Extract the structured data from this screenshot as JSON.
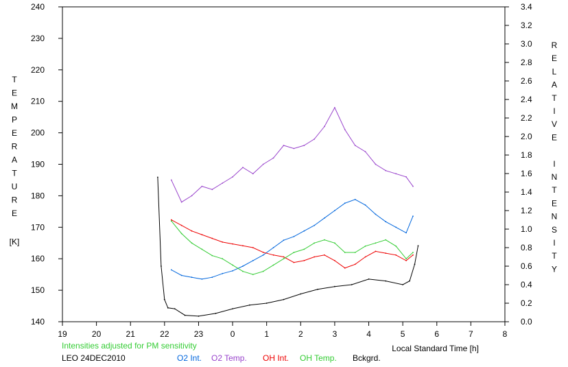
{
  "chart_data": {
    "type": "line",
    "xlabel": "Local Standard Time [h]",
    "ylabel_left": "TEMPERATURE",
    "ylabel_left_unit": "[K]",
    "ylabel_right": "RELATIVE INTENSITY",
    "x_ticks": [
      "19",
      "20",
      "21",
      "22",
      "23",
      "0",
      "1",
      "2",
      "3",
      "4",
      "5",
      "6",
      "7",
      "8"
    ],
    "xlim": [
      19,
      32
    ],
    "ylim_left": [
      140,
      240
    ],
    "ylim_right": [
      0,
      3.4
    ],
    "y_left_ticks": [
      140,
      150,
      160,
      170,
      180,
      190,
      200,
      210,
      220,
      230,
      240
    ],
    "y_right_ticks": [
      "0.0",
      "0.2",
      "0.4",
      "0.6",
      "0.8",
      "1.0",
      "1.2",
      "1.4",
      "1.6",
      "1.8",
      "2.0",
      "2.2",
      "2.4",
      "2.6",
      "2.8",
      "3.0",
      "3.2",
      "3.4"
    ],
    "note": "Intensities adjusted for PM sensitivity",
    "site_date": "LEO 24DEC2010",
    "grid": false,
    "series": [
      {
        "name": "O2 Int.",
        "axis": "right",
        "color": "#0066dd",
        "x": [
          22.2,
          22.5,
          22.8,
          23.1,
          23.4,
          23.7,
          24.0,
          24.3,
          24.6,
          24.9,
          25.2,
          25.5,
          25.8,
          26.1,
          26.4,
          26.7,
          27.0,
          27.3,
          27.6,
          27.9,
          28.2,
          28.5,
          28.8,
          29.1,
          29.3
        ],
        "y": [
          0.56,
          0.5,
          0.48,
          0.46,
          0.48,
          0.52,
          0.55,
          0.6,
          0.66,
          0.72,
          0.8,
          0.88,
          0.92,
          0.98,
          1.04,
          1.12,
          1.2,
          1.28,
          1.32,
          1.26,
          1.16,
          1.08,
          1.02,
          0.96,
          1.14
        ]
      },
      {
        "name": "O2 Temp.",
        "axis": "left",
        "color": "#9944cc",
        "x": [
          22.2,
          22.5,
          22.8,
          23.1,
          23.4,
          23.7,
          24.0,
          24.3,
          24.6,
          24.9,
          25.2,
          25.5,
          25.8,
          26.1,
          26.4,
          26.7,
          27.0,
          27.3,
          27.6,
          27.9,
          28.2,
          28.5,
          28.8,
          29.1,
          29.3
        ],
        "y": [
          185,
          178,
          180,
          183,
          182,
          184,
          186,
          189,
          187,
          190,
          192,
          196,
          195,
          196,
          198,
          202,
          208,
          201,
          196,
          194,
          190,
          188,
          187,
          186,
          183
        ]
      },
      {
        "name": "OH Int.",
        "axis": "right",
        "color": "#ee0000",
        "x": [
          22.2,
          22.5,
          22.8,
          23.1,
          23.4,
          23.7,
          24.0,
          24.3,
          24.6,
          24.9,
          25.2,
          25.5,
          25.8,
          26.1,
          26.4,
          26.7,
          27.0,
          27.3,
          27.6,
          27.9,
          28.2,
          28.5,
          28.8,
          29.1,
          29.3
        ],
        "y": [
          1.1,
          1.04,
          0.98,
          0.94,
          0.9,
          0.86,
          0.84,
          0.82,
          0.8,
          0.75,
          0.72,
          0.7,
          0.64,
          0.66,
          0.7,
          0.72,
          0.66,
          0.58,
          0.62,
          0.7,
          0.76,
          0.74,
          0.72,
          0.66,
          0.72
        ]
      },
      {
        "name": "OH Temp.",
        "axis": "left",
        "color": "#33cc33",
        "x": [
          22.2,
          22.5,
          22.8,
          23.1,
          23.4,
          23.7,
          24.0,
          24.3,
          24.6,
          24.9,
          25.2,
          25.5,
          25.8,
          26.1,
          26.4,
          26.7,
          27.0,
          27.3,
          27.6,
          27.9,
          28.2,
          28.5,
          28.8,
          29.1,
          29.3
        ],
        "y": [
          172,
          168,
          165,
          163,
          161,
          160,
          158,
          156,
          155,
          156,
          158,
          160,
          162,
          163,
          165,
          166,
          165,
          162,
          162,
          164,
          165,
          166,
          164,
          160,
          162
        ]
      },
      {
        "name": "Bckgrd.",
        "axis": "right",
        "color": "#000000",
        "x": [
          21.8,
          21.9,
          22.0,
          22.1,
          22.3,
          22.6,
          23.0,
          23.5,
          24.0,
          24.5,
          25.0,
          25.5,
          26.0,
          26.5,
          27.0,
          27.5,
          28.0,
          28.5,
          29.0,
          29.2,
          29.35,
          29.45
        ],
        "y": [
          1.56,
          0.6,
          0.24,
          0.15,
          0.14,
          0.07,
          0.06,
          0.09,
          0.14,
          0.18,
          0.2,
          0.24,
          0.3,
          0.35,
          0.38,
          0.4,
          0.46,
          0.44,
          0.4,
          0.44,
          0.62,
          0.82
        ]
      }
    ]
  }
}
